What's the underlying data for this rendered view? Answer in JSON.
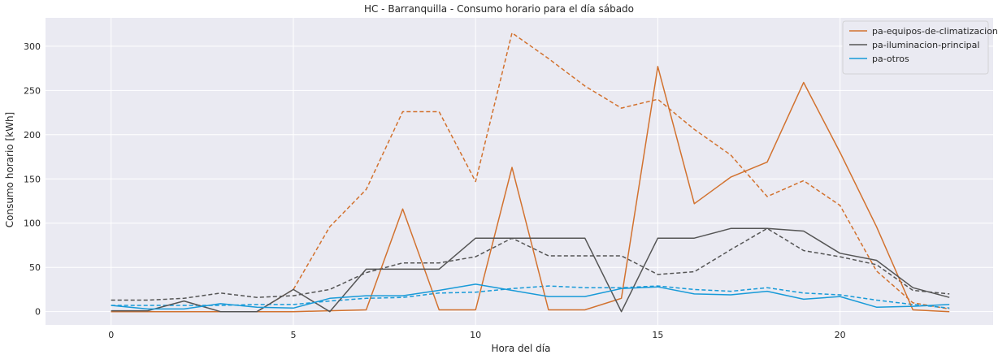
{
  "chart_data": {
    "type": "line",
    "title": "HC - Barranquilla - Consumo horario para el día sábado",
    "xlabel": "Hora del día",
    "ylabel": "Consumo horario [kWh]",
    "xlim": [
      -1.8,
      24.2
    ],
    "ylim": [
      -15,
      332
    ],
    "xticks": [
      0,
      5,
      10,
      15,
      20
    ],
    "yticks": [
      0,
      50,
      100,
      150,
      200,
      250,
      300
    ],
    "grid": true,
    "legend_position": "top-right",
    "x": [
      0,
      1,
      2,
      3,
      4,
      5,
      6,
      7,
      8,
      9,
      10,
      11,
      12,
      13,
      14,
      15,
      16,
      17,
      18,
      19,
      20,
      21,
      22,
      23
    ],
    "series": [
      {
        "name": "pa-equipos-de-climatizacion",
        "color": "#d2722f",
        "style": "solid",
        "legend": true,
        "values": [
          0,
          0,
          0,
          0,
          0,
          0,
          1,
          2,
          116,
          2,
          2,
          163,
          2,
          2,
          15,
          277,
          122,
          152,
          169,
          259,
          180,
          96,
          2,
          0
        ]
      },
      {
        "name": "pa-iluminacion-principal",
        "color": "#555555",
        "style": "solid",
        "legend": true,
        "values": [
          1,
          1,
          12,
          0,
          0,
          25,
          0,
          48,
          48,
          48,
          83,
          83,
          83,
          83,
          0,
          83,
          83,
          94,
          94,
          91,
          66,
          58,
          27,
          16
        ]
      },
      {
        "name": "pa-otros",
        "color": "#189ad8",
        "style": "solid",
        "legend": true,
        "values": [
          7,
          3,
          3,
          9,
          5,
          4,
          15,
          18,
          18,
          24,
          31,
          24,
          17,
          17,
          26,
          28,
          20,
          19,
          23,
          14,
          17,
          5,
          6,
          8
        ]
      },
      {
        "name": "",
        "color": "#d2722f",
        "style": "dashed",
        "legend": false,
        "values": [
          0,
          0,
          0,
          0,
          0,
          25,
          96,
          138,
          226,
          226,
          147,
          315,
          286,
          255,
          230,
          240,
          206,
          177,
          130,
          148,
          120,
          46,
          10,
          3
        ]
      },
      {
        "name": "",
        "color": "#555555",
        "style": "dashed",
        "legend": false,
        "values": [
          13,
          13,
          15,
          21,
          16,
          18,
          25,
          44,
          55,
          55,
          62,
          83,
          63,
          63,
          63,
          42,
          45,
          70,
          94,
          69,
          62,
          53,
          24,
          20
        ]
      },
      {
        "name": "",
        "color": "#189ad8",
        "style": "dashed",
        "legend": false,
        "values": [
          7,
          7,
          7,
          7,
          8,
          8,
          12,
          15,
          16,
          21,
          22,
          26,
          29,
          27,
          27,
          29,
          25,
          23,
          27,
          21,
          19,
          13,
          8,
          4
        ]
      }
    ]
  },
  "colors": {
    "background": "#ffffff",
    "plot_background": "#eaeaf2",
    "grid": "#ffffff"
  }
}
